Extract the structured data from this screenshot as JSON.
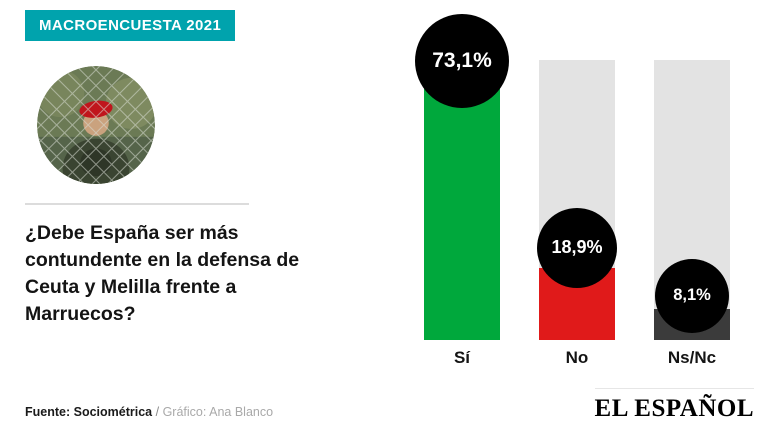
{
  "banner": {
    "label": "MACROENCUESTA 2021"
  },
  "question": "¿Debe España ser más contundente en la defensa de Ceuta y Melilla frente a Marruecos?",
  "footer": {
    "source": "Fuente: Sociométrica",
    "separator": "/",
    "credit": "Gráfico: Ana Blanco"
  },
  "logo": "EL ESPAÑOL",
  "colors": {
    "banner_bg": "#00a3ad",
    "banner_text": "#ffffff",
    "accent_green": "#00a83c",
    "accent_red": "#e01a1a",
    "dark_bar": "#3b3b3b",
    "track": "#e3e3e3",
    "badge_bg": "#000000",
    "badge_text": "#ffffff"
  },
  "chart_data": {
    "type": "bar",
    "title": "¿Debe España ser más contundente en la defensa de Ceuta y Melilla frente a Marruecos?",
    "categories": [
      "Sí",
      "No",
      "Ns/Nc"
    ],
    "values": [
      73.1,
      18.9,
      8.1
    ],
    "data_labels": [
      "73,1%",
      "18,9%",
      "8,1%"
    ],
    "bar_colors": [
      "#00a83c",
      "#e01a1a",
      "#3b3b3b"
    ],
    "track_color": "#e3e3e3",
    "badge_color": "#000000",
    "badge_text_color": "#ffffff",
    "xlabel": "",
    "ylabel": "",
    "ylim": [
      0,
      100
    ],
    "scale_max": 73.1,
    "legend": false,
    "grid": false
  }
}
